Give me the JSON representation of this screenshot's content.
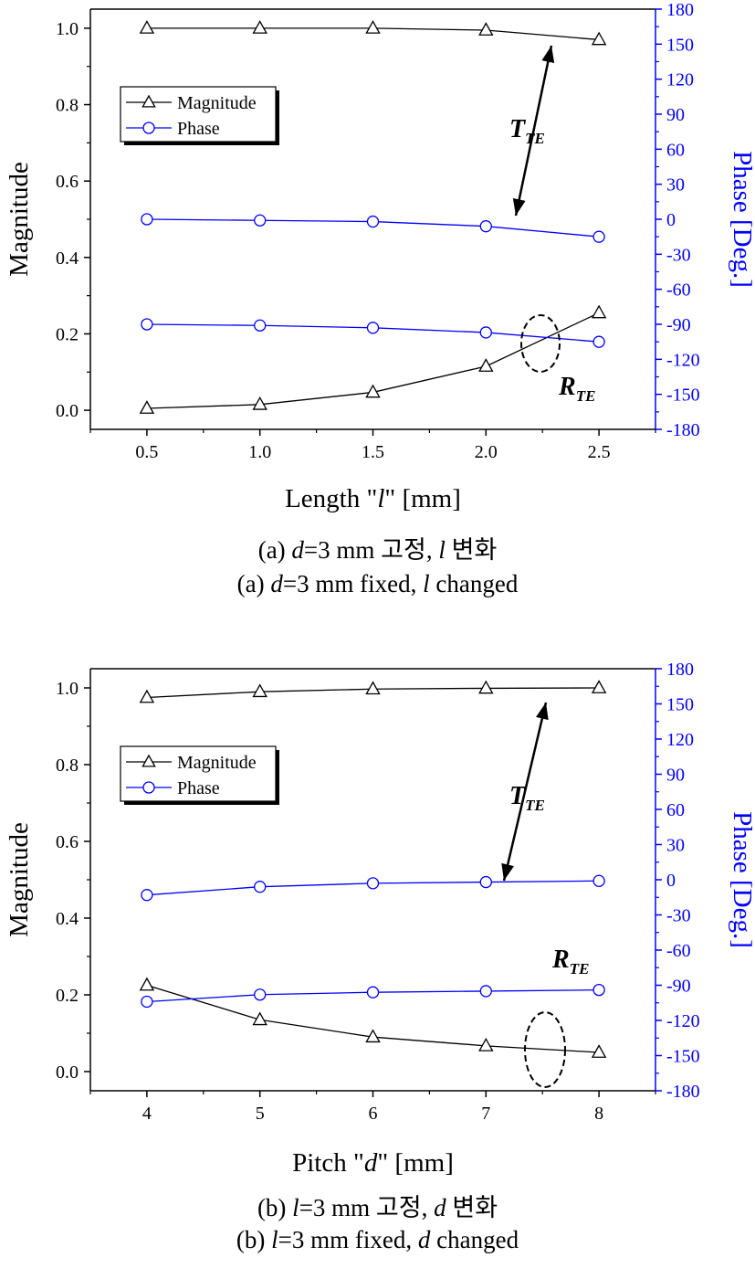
{
  "chart_data": [
    {
      "type": "line",
      "xlabel_parts": [
        "Length \"",
        "l",
        "\" [mm]"
      ],
      "ylabel": "Magnitude",
      "y2label": "Phase [Deg.]",
      "x": [
        0.5,
        1.0,
        1.5,
        2.0,
        2.5
      ],
      "xlim": [
        0.25,
        2.75
      ],
      "ylim": [
        -0.05,
        1.05
      ],
      "y2lim": [
        -180,
        180
      ],
      "xticks": [
        "0.5",
        "1.0",
        "1.5",
        "2.0",
        "2.5"
      ],
      "yticks": [
        "0.0",
        "0.2",
        "0.4",
        "0.6",
        "0.8",
        "1.0"
      ],
      "y2ticks": [
        "-180",
        "-150",
        "-120",
        "-90",
        "-60",
        "-30",
        "0",
        "30",
        "60",
        "90",
        "120",
        "150",
        "180"
      ],
      "legend": {
        "placement": "upper-left",
        "entries": [
          {
            "label": "Magnitude",
            "marker": "triangle",
            "color": "#000000"
          },
          {
            "label": "Phase",
            "marker": "circle",
            "color": "#0000ff"
          }
        ]
      },
      "series": [
        {
          "kind": "magnitude",
          "axis": "left",
          "color": "#000000",
          "marker": "triangle",
          "values": [
            1.0,
            1.0,
            1.0,
            0.995,
            0.97
          ]
        },
        {
          "kind": "phase",
          "axis": "right",
          "color": "#0000ff",
          "marker": "circle",
          "values": [
            0,
            -1,
            -2,
            -6,
            -15
          ]
        },
        {
          "kind": "magnitude",
          "axis": "left",
          "color": "#000000",
          "marker": "triangle",
          "values": [
            0.005,
            0.015,
            0.047,
            0.115,
            0.255
          ]
        },
        {
          "kind": "phase",
          "axis": "right",
          "color": "#0000ff",
          "marker": "circle",
          "values": [
            -90,
            -91,
            -93,
            -97,
            -105
          ]
        }
      ],
      "annotations": {
        "t_label": {
          "main": "T",
          "sub": "TE"
        },
        "r_label": {
          "main": "R",
          "sub": "TE"
        }
      },
      "caption_ko": {
        "prefix": "(a) ",
        "v1": "d",
        "mid": "=3  mm 고정, ",
        "v2": "l",
        "suffix": " 변화"
      },
      "caption_en": {
        "prefix": "(a) ",
        "v1": "d",
        "mid": "=3  mm fixed, ",
        "v2": "l",
        "suffix": " changed"
      }
    },
    {
      "type": "line",
      "xlabel_parts": [
        "Pitch \"",
        "d",
        "\" [mm]"
      ],
      "ylabel": "Magnitude",
      "y2label": "Phase [Deg.]",
      "x": [
        4,
        5,
        6,
        7,
        8
      ],
      "xlim": [
        3.5,
        8.5
      ],
      "ylim": [
        -0.05,
        1.05
      ],
      "y2lim": [
        -180,
        180
      ],
      "xticks": [
        "4",
        "5",
        "6",
        "7",
        "8"
      ],
      "yticks": [
        "0.0",
        "0.2",
        "0.4",
        "0.6",
        "0.8",
        "1.0"
      ],
      "y2ticks": [
        "-180",
        "-150",
        "-120",
        "-90",
        "-60",
        "-30",
        "0",
        "30",
        "60",
        "90",
        "120",
        "150",
        "180"
      ],
      "legend": {
        "placement": "upper-left",
        "entries": [
          {
            "label": "Magnitude",
            "marker": "triangle",
            "color": "#000000"
          },
          {
            "label": "Phase",
            "marker": "circle",
            "color": "#0000ff"
          }
        ]
      },
      "series": [
        {
          "kind": "magnitude",
          "axis": "left",
          "color": "#000000",
          "marker": "triangle",
          "values": [
            0.975,
            0.99,
            0.997,
            0.999,
            1.0
          ]
        },
        {
          "kind": "phase",
          "axis": "right",
          "color": "#0000ff",
          "marker": "circle",
          "values": [
            -13,
            -6,
            -3,
            -2,
            -1
          ]
        },
        {
          "kind": "magnitude",
          "axis": "left",
          "color": "#000000",
          "marker": "triangle",
          "values": [
            0.225,
            0.135,
            0.09,
            0.067,
            0.05
          ]
        },
        {
          "kind": "phase",
          "axis": "right",
          "color": "#0000ff",
          "marker": "circle",
          "values": [
            -104,
            -98,
            -96,
            -95,
            -94
          ]
        }
      ],
      "annotations": {
        "t_label": {
          "main": "T",
          "sub": "TE"
        },
        "r_label": {
          "main": "R",
          "sub": "TE"
        }
      },
      "caption_ko": {
        "prefix": "(b) ",
        "v1": "l",
        "mid": "=3  mm 고정, ",
        "v2": "d",
        "suffix": " 변화"
      },
      "caption_en": {
        "prefix": "(b) ",
        "v1": "l",
        "mid": "=3  mm fixed, ",
        "v2": "d",
        "suffix": " changed"
      }
    }
  ]
}
